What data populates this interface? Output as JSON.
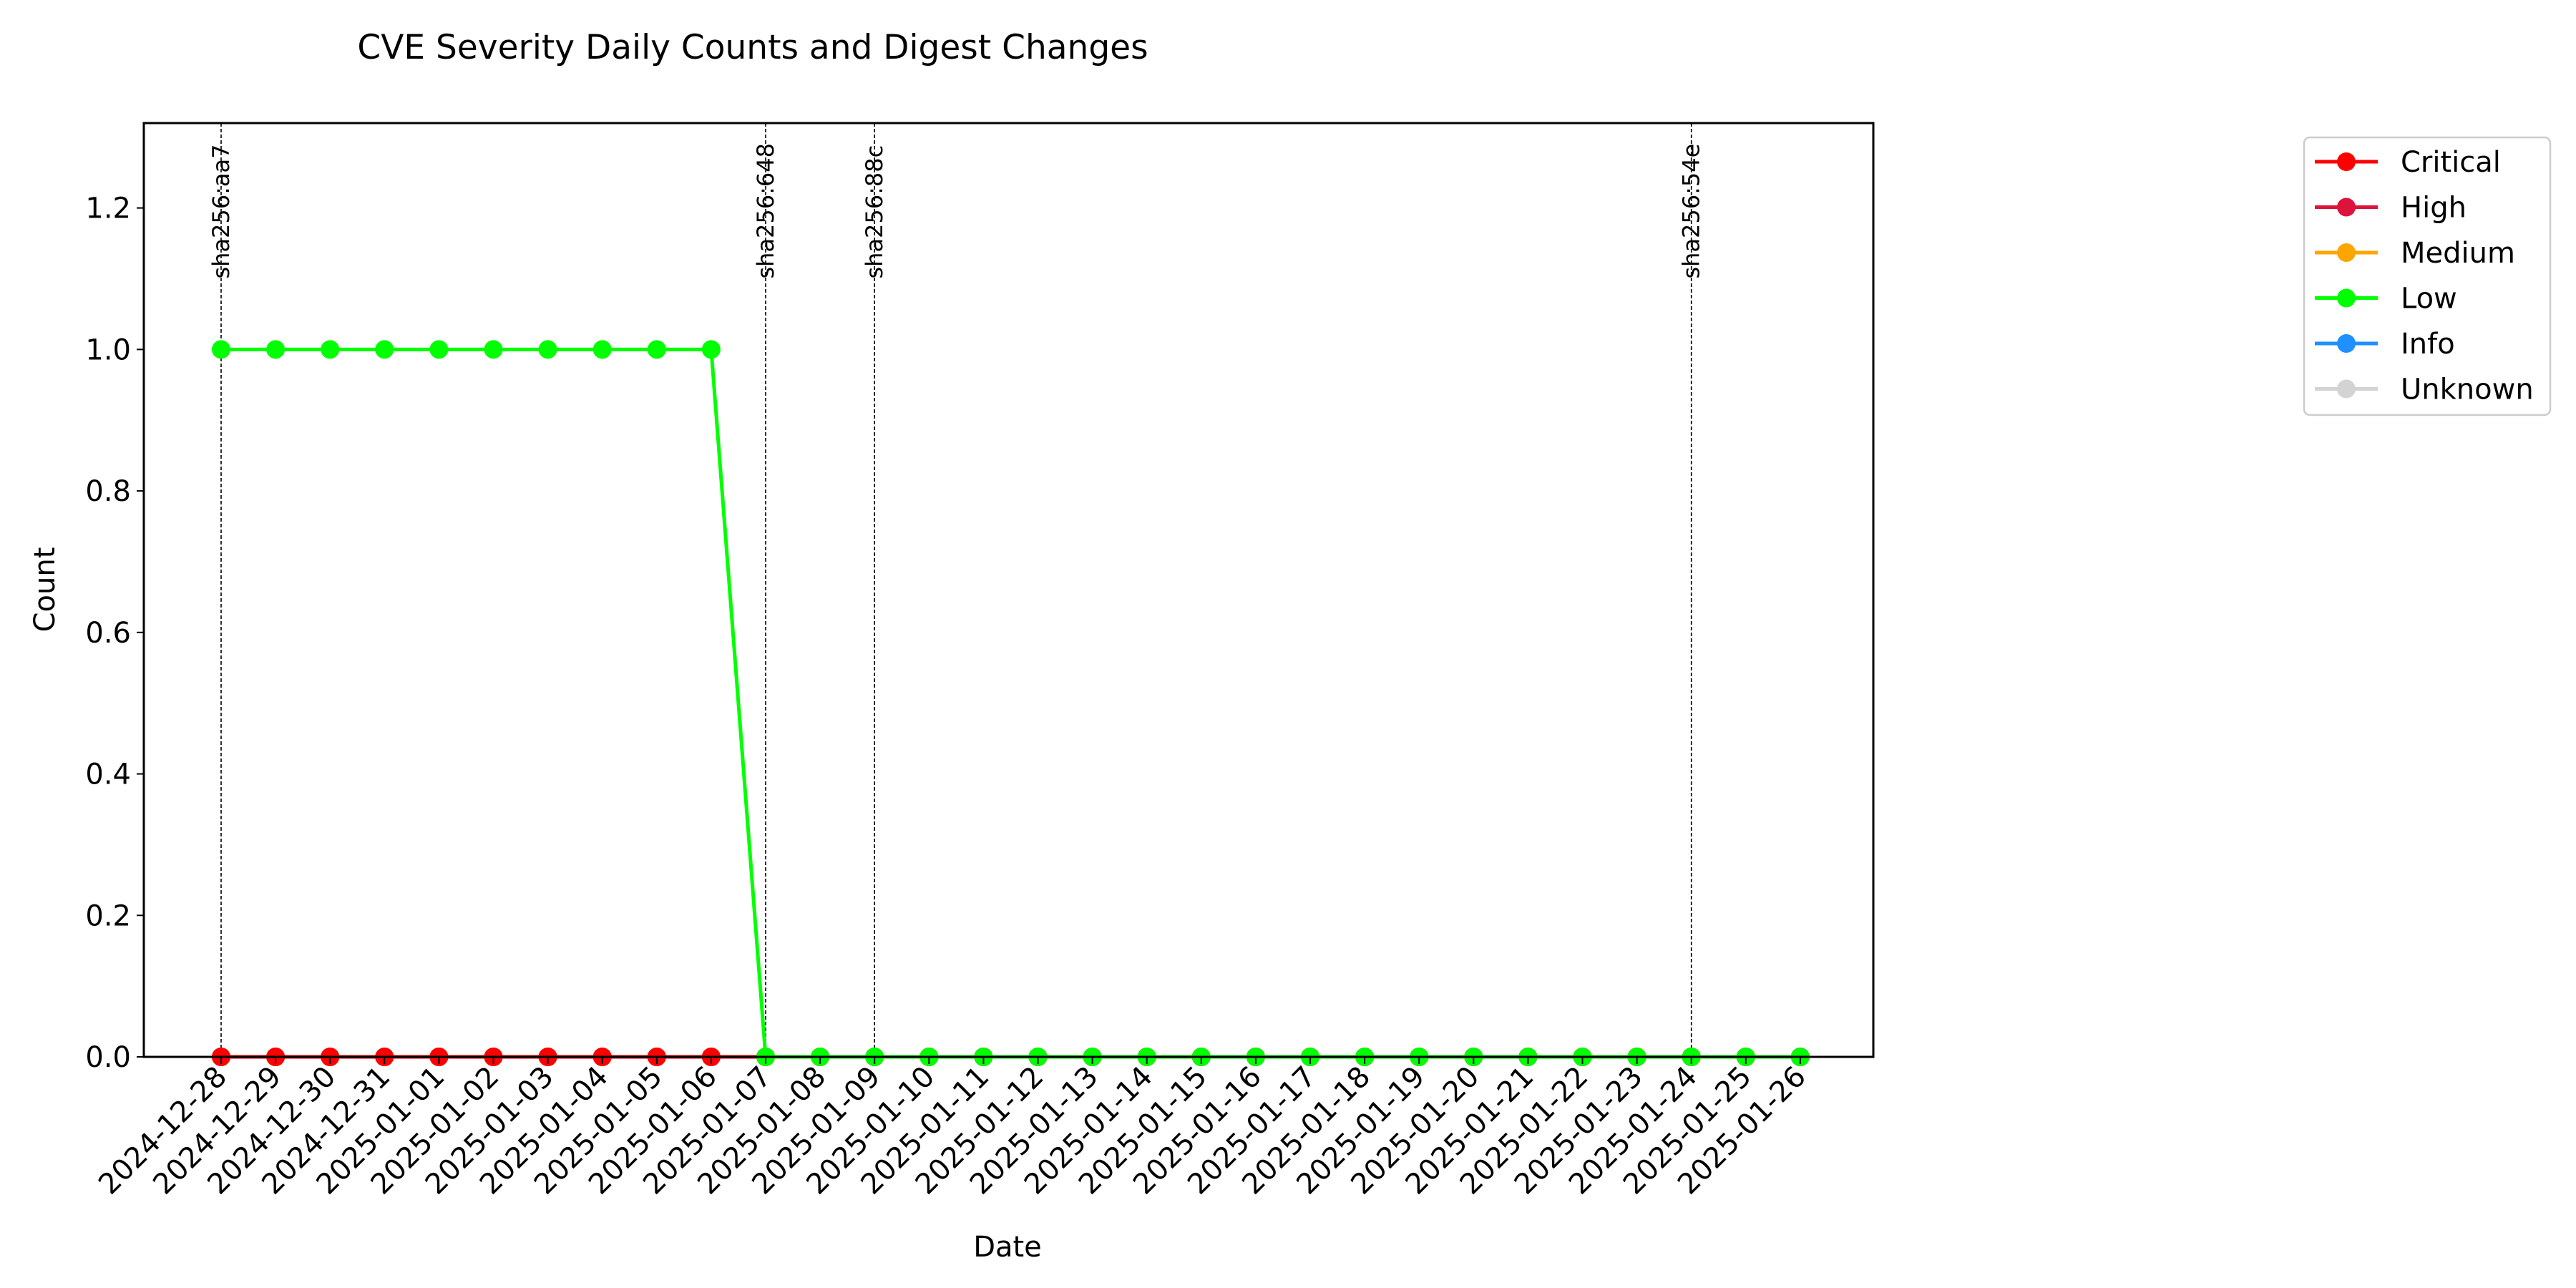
{
  "chart_data": {
    "type": "line",
    "title": "CVE Severity Daily Counts and Digest Changes",
    "xlabel": "Date",
    "ylabel": "Count",
    "ylim": [
      0,
      1.32
    ],
    "yticks": [
      "0.0",
      "0.2",
      "0.4",
      "0.6",
      "0.8",
      "1.0",
      "1.2"
    ],
    "grid": false,
    "legend_position": "outside-top-right",
    "categories": [
      "2024-12-28",
      "2024-12-29",
      "2024-12-30",
      "2024-12-31",
      "2025-01-01",
      "2025-01-02",
      "2025-01-03",
      "2025-01-04",
      "2025-01-05",
      "2025-01-06",
      "2025-01-07",
      "2025-01-08",
      "2025-01-09",
      "2025-01-10",
      "2025-01-11",
      "2025-01-12",
      "2025-01-13",
      "2025-01-14",
      "2025-01-15",
      "2025-01-16",
      "2025-01-17",
      "2025-01-18",
      "2025-01-19",
      "2025-01-20",
      "2025-01-21",
      "2025-01-22",
      "2025-01-23",
      "2025-01-24",
      "2025-01-25",
      "2025-01-26"
    ],
    "series": [
      {
        "name": "Critical",
        "color": "#ff0000",
        "values": [
          0,
          0,
          0,
          0,
          0,
          0,
          0,
          0,
          0,
          0,
          0,
          0,
          0,
          0,
          0,
          0,
          0,
          0,
          0,
          0,
          0,
          0,
          0,
          0,
          0,
          0,
          0,
          0,
          0,
          0
        ]
      },
      {
        "name": "High",
        "color": "#dc143c",
        "values": [
          0,
          0,
          0,
          0,
          0,
          0,
          0,
          0,
          0,
          0,
          0,
          0,
          0,
          0,
          0,
          0,
          0,
          0,
          0,
          0,
          0,
          0,
          0,
          0,
          0,
          0,
          0,
          0,
          0,
          0
        ]
      },
      {
        "name": "Medium",
        "color": "#ffa500",
        "values": [
          0,
          0,
          0,
          0,
          0,
          0,
          0,
          0,
          0,
          0,
          0,
          0,
          0,
          0,
          0,
          0,
          0,
          0,
          0,
          0,
          0,
          0,
          0,
          0,
          0,
          0,
          0,
          0,
          0,
          0
        ]
      },
      {
        "name": "Low",
        "color": "#00ff00",
        "values": [
          1,
          1,
          1,
          1,
          1,
          1,
          1,
          1,
          1,
          1,
          0,
          0,
          0,
          0,
          0,
          0,
          0,
          0,
          0,
          0,
          0,
          0,
          0,
          0,
          0,
          0,
          0,
          0,
          0,
          0
        ]
      },
      {
        "name": "Info",
        "color": "#1e90ff",
        "values": [
          0,
          0,
          0,
          0,
          0,
          0,
          0,
          0,
          0,
          0,
          0,
          0,
          0,
          0,
          0,
          0,
          0,
          0,
          0,
          0,
          0,
          0,
          0,
          0,
          0,
          0,
          0,
          0,
          0,
          0
        ]
      },
      {
        "name": "Unknown",
        "color": "#d3d3d3",
        "values": [
          0,
          0,
          0,
          0,
          0,
          0,
          0,
          0,
          0,
          0,
          0,
          0,
          0,
          0,
          0,
          0,
          0,
          0,
          0,
          0,
          0,
          0,
          0,
          0,
          0,
          0,
          0,
          0,
          0,
          0
        ]
      }
    ],
    "annotations": [
      {
        "label": "sha256:aa7",
        "x": "2024-12-28"
      },
      {
        "label": "sha256:648",
        "x": "2025-01-07"
      },
      {
        "label": "sha256:88c",
        "x": "2025-01-09"
      },
      {
        "label": "sha256:54e",
        "x": "2025-01-24"
      }
    ]
  }
}
